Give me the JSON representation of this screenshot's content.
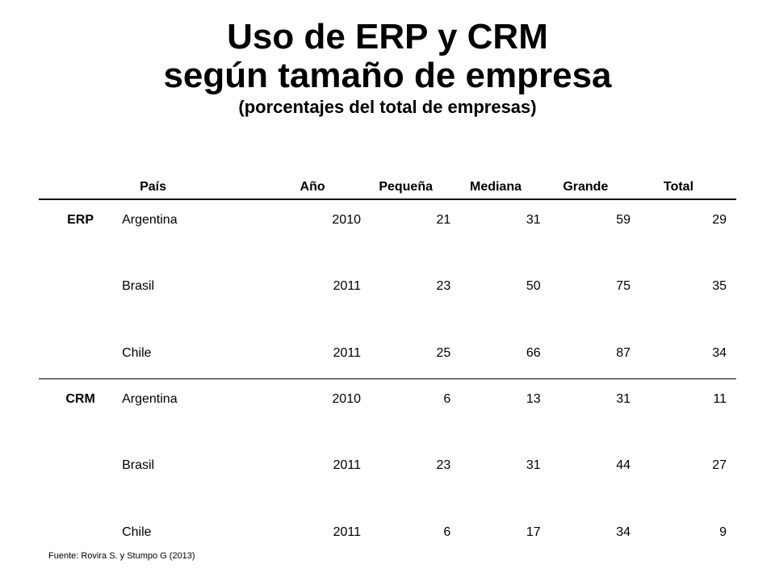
{
  "title": {
    "line1": "Uso de ERP y CRM",
    "line2": "según tamaño de empresa",
    "subtitle": "(porcentajes del total de empresas)"
  },
  "table": {
    "headers": {
      "group": "",
      "country": "País",
      "year": "Año",
      "small": "Pequeña",
      "medium": "Mediana",
      "large": "Grande",
      "total": "Total"
    },
    "groups": [
      {
        "label": "ERP",
        "rows": [
          {
            "country": "Argentina",
            "year": "2010",
            "small": "21",
            "medium": "31",
            "large": "59",
            "total": "29"
          },
          {
            "country": "Brasil",
            "year": "2011",
            "small": "23",
            "medium": "50",
            "large": "75",
            "total": "35"
          },
          {
            "country": "Chile",
            "year": "2011",
            "small": "25",
            "medium": "66",
            "large": "87",
            "total": "34"
          }
        ]
      },
      {
        "label": "CRM",
        "rows": [
          {
            "country": "Argentina",
            "year": "2010",
            "small": "6",
            "medium": "13",
            "large": "31",
            "total": "11"
          },
          {
            "country": "Brasil",
            "year": "2011",
            "small": "23",
            "medium": "31",
            "large": "44",
            "total": "27"
          },
          {
            "country": "Chile",
            "year": "2011",
            "small": "6",
            "medium": "17",
            "large": "34",
            "total": "9"
          }
        ]
      }
    ]
  },
  "source": "Fuente: Rovira S. y Stumpo G (2013)"
}
